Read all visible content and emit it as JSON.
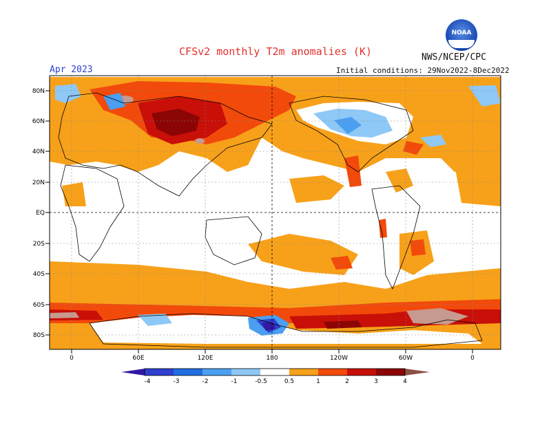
{
  "header": {
    "title": "CFSv2 monthly T2m anomalies (K)",
    "agency": "NWS/NCEP/CPC",
    "month": "Apr 2023",
    "initial_conditions": "Initial conditions: 29Nov2022-8Dec2022",
    "logo_text": "NOAA"
  },
  "map": {
    "lat_labels": [
      "80N",
      "60N",
      "40N",
      "20N",
      "EQ",
      "20S",
      "40S",
      "60S",
      "80S"
    ],
    "lon_labels": [
      "0",
      "60E",
      "120E",
      "180",
      "120W",
      "60W",
      "0"
    ]
  },
  "colorbar": {
    "labels": [
      "-4",
      "-3",
      "-2",
      "-1",
      "-0.5",
      "0.5",
      "1",
      "2",
      "3",
      "4"
    ],
    "colors": [
      "#3318a3",
      "#2f3fcf",
      "#1f6ee0",
      "#4a9ff0",
      "#8ec8f7",
      "#ffffff",
      "#f7a11a",
      "#f24a0b",
      "#c80f08",
      "#8c0505",
      "#c8998e",
      "#8a5046"
    ]
  }
}
